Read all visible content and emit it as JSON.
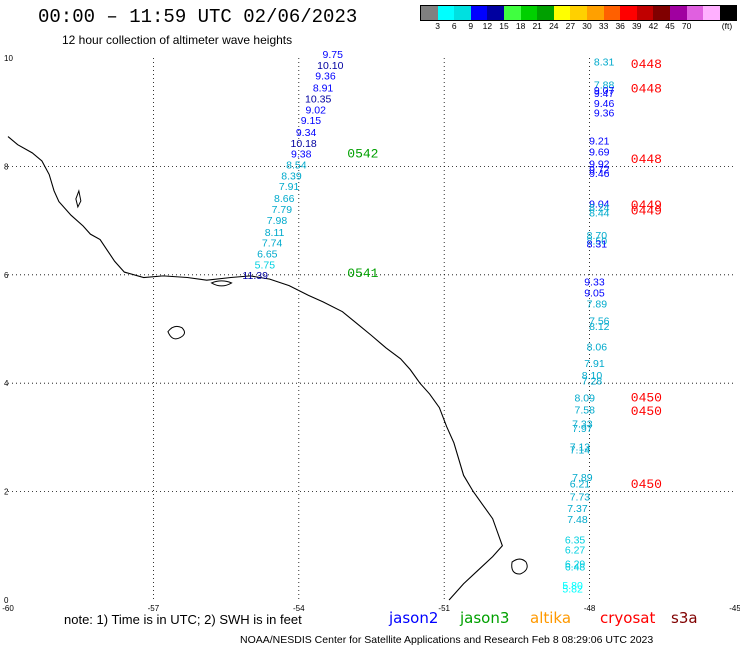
{
  "header": {
    "title": "00:00 – 11:59 UTC 02/06/2023",
    "subtitle": "12 hour collection of altimeter wave heights"
  },
  "legend": {
    "colors": [
      "#808080",
      "#00ffff",
      "#00e0e0",
      "#0000ff",
      "#0000a0",
      "#40ff40",
      "#00d000",
      "#00a000",
      "#ffff00",
      "#ffd000",
      "#ffa000",
      "#ff6000",
      "#ff0000",
      "#c00000",
      "#800000",
      "#a000a0",
      "#e060e0",
      "#ffb0ff",
      "#000000"
    ],
    "labels": [
      "3",
      "6",
      "9",
      "12",
      "15",
      "18",
      "21",
      "24",
      "27",
      "30",
      "33",
      "36",
      "39",
      "42",
      "45",
      "70",
      "(ft)"
    ]
  },
  "axes": {
    "x_ticks": [
      "-60",
      "-57",
      "-54",
      "-51",
      "-48",
      "-45"
    ],
    "y_ticks": [
      "0",
      "2",
      "4",
      "6",
      "8",
      "10"
    ]
  },
  "tracks": [
    {
      "satellite": "jason3",
      "time_labels": [
        {
          "text": "0542",
          "lat": 8.2
        },
        {
          "text": "0541",
          "lat": 6.0
        }
      ]
    },
    {
      "satellite": "cryosat",
      "time_labels": [
        {
          "text": "0448",
          "lat": 9.85
        },
        {
          "text": "0448",
          "lat": 9.4
        },
        {
          "text": "0448",
          "lat": 8.1
        },
        {
          "text": "0449",
          "lat": 7.25
        },
        {
          "text": "0449",
          "lat": 7.15
        },
        {
          "text": "0450",
          "lat": 3.7
        },
        {
          "text": "0450",
          "lat": 3.45
        },
        {
          "text": "0450",
          "lat": 2.1
        }
      ]
    }
  ],
  "track_jason3": [
    {
      "v": "9.75",
      "lat": 10.0,
      "lon": -53.3,
      "c": "#0000ff"
    },
    {
      "v": "10.10",
      "lat": 9.8,
      "lon": -53.35,
      "c": "#0000a0"
    },
    {
      "v": "9.36",
      "lat": 9.6,
      "lon": -53.45,
      "c": "#0000ff"
    },
    {
      "v": "8.91",
      "lat": 9.38,
      "lon": -53.5,
      "c": "#0000ff"
    },
    {
      "v": "10.35",
      "lat": 9.18,
      "lon": -53.6,
      "c": "#0000a0"
    },
    {
      "v": "9.02",
      "lat": 8.98,
      "lon": -53.65,
      "c": "#0000ff"
    },
    {
      "v": "9.15",
      "lat": 8.78,
      "lon": -53.75,
      "c": "#0000ff"
    },
    {
      "v": "9.34",
      "lat": 8.56,
      "lon": -53.85,
      "c": "#0000ff"
    },
    {
      "v": "10.18",
      "lat": 8.36,
      "lon": -53.9,
      "c": "#0000a0"
    },
    {
      "v": "9.38",
      "lat": 8.16,
      "lon": -53.95,
      "c": "#0000ff"
    },
    {
      "v": "8.54",
      "lat": 7.96,
      "lon": -54.05,
      "c": "#00aacc"
    },
    {
      "v": "8.39",
      "lat": 7.76,
      "lon": -54.15,
      "c": "#00aacc"
    },
    {
      "v": "7.91",
      "lat": 7.56,
      "lon": -54.2,
      "c": "#00aacc"
    },
    {
      "v": "8.66",
      "lat": 7.34,
      "lon": -54.3,
      "c": "#00aacc"
    },
    {
      "v": "7.79",
      "lat": 7.14,
      "lon": -54.35,
      "c": "#00aacc"
    },
    {
      "v": "7.98",
      "lat": 6.94,
      "lon": -54.45,
      "c": "#00aacc"
    },
    {
      "v": "8.11",
      "lat": 6.72,
      "lon": -54.5,
      "c": "#00aacc"
    },
    {
      "v": "7.74",
      "lat": 6.52,
      "lon": -54.55,
      "c": "#00aacc"
    },
    {
      "v": "6.65",
      "lat": 6.32,
      "lon": -54.65,
      "c": "#00aacc"
    },
    {
      "v": "5.75",
      "lat": 6.12,
      "lon": -54.7,
      "c": "#00d0e0"
    },
    {
      "v": "11.39",
      "lat": 5.92,
      "lon": -54.9,
      "c": "#0000a0"
    }
  ],
  "track_cryosat": [
    {
      "v": "8.31",
      "lat": 9.86,
      "lon": -47.7,
      "c": "#00aacc"
    },
    {
      "v": "7.88",
      "lat": 9.44,
      "lon": -47.7,
      "c": "#00aacc"
    },
    {
      "v": "9.07",
      "lat": 9.34,
      "lon": -47.7,
      "c": "#0000ff"
    },
    {
      "v": "9.47",
      "lat": 9.28,
      "lon": -47.7,
      "c": "#0000ff"
    },
    {
      "v": "9.46",
      "lat": 9.1,
      "lon": -47.7,
      "c": "#0000ff"
    },
    {
      "v": "9.36",
      "lat": 8.92,
      "lon": -47.7,
      "c": "#0000ff"
    },
    {
      "v": "9.21",
      "lat": 8.4,
      "lon": -47.8,
      "c": "#0000ff"
    },
    {
      "v": "9.69",
      "lat": 8.2,
      "lon": -47.8,
      "c": "#0000ff"
    },
    {
      "v": "9.92",
      "lat": 7.98,
      "lon": -47.8,
      "c": "#0000ff"
    },
    {
      "v": "9.72",
      "lat": 7.88,
      "lon": -47.8,
      "c": "#0000ff"
    },
    {
      "v": "9.46",
      "lat": 7.8,
      "lon": -47.8,
      "c": "#0000ff"
    },
    {
      "v": "9.04",
      "lat": 7.24,
      "lon": -47.8,
      "c": "#0000ff"
    },
    {
      "v": "8.24",
      "lat": 7.18,
      "lon": -47.8,
      "c": "#00aacc"
    },
    {
      "v": "8.44",
      "lat": 7.08,
      "lon": -47.8,
      "c": "#00aacc"
    },
    {
      "v": "8.70",
      "lat": 6.66,
      "lon": -47.85,
      "c": "#00aacc"
    },
    {
      "v": "8.50",
      "lat": 6.56,
      "lon": -47.85,
      "c": "#00aacc"
    },
    {
      "v": "8.31",
      "lat": 6.5,
      "lon": -47.85,
      "c": "#0000ff"
    },
    {
      "v": "9.33",
      "lat": 5.8,
      "lon": -47.9,
      "c": "#0000ff"
    },
    {
      "v": "9.05",
      "lat": 5.6,
      "lon": -47.9,
      "c": "#0000ff"
    },
    {
      "v": "7.89",
      "lat": 5.4,
      "lon": -47.85,
      "c": "#00aacc"
    },
    {
      "v": "7.56",
      "lat": 5.08,
      "lon": -47.8,
      "c": "#00aacc"
    },
    {
      "v": "8.12",
      "lat": 4.98,
      "lon": -47.8,
      "c": "#00aacc"
    },
    {
      "v": "8.06",
      "lat": 4.6,
      "lon": -47.85,
      "c": "#00aacc"
    },
    {
      "v": "7.91",
      "lat": 4.3,
      "lon": -47.9,
      "c": "#00aacc"
    },
    {
      "v": "8.10",
      "lat": 4.08,
      "lon": -47.95,
      "c": "#00aacc"
    },
    {
      "v": "7.28",
      "lat": 3.98,
      "lon": -47.95,
      "c": "#00aacc"
    },
    {
      "v": "8.09",
      "lat": 3.66,
      "lon": -48.1,
      "c": "#00aacc"
    },
    {
      "v": "7.58",
      "lat": 3.44,
      "lon": -48.1,
      "c": "#00aacc"
    },
    {
      "v": "7.33",
      "lat": 3.18,
      "lon": -48.15,
      "c": "#00aacc"
    },
    {
      "v": "7.97",
      "lat": 3.1,
      "lon": -48.15,
      "c": "#00aacc"
    },
    {
      "v": "7.13",
      "lat": 2.76,
      "lon": -48.2,
      "c": "#00aacc"
    },
    {
      "v": "7.14",
      "lat": 2.7,
      "lon": -48.2,
      "c": "#00aacc"
    },
    {
      "v": "7.89",
      "lat": 2.2,
      "lon": -48.15,
      "c": "#00aacc"
    },
    {
      "v": "6.21",
      "lat": 2.08,
      "lon": -48.2,
      "c": "#00aacc"
    },
    {
      "v": "7.73",
      "lat": 1.84,
      "lon": -48.2,
      "c": "#00aacc"
    },
    {
      "v": "7.37",
      "lat": 1.62,
      "lon": -48.25,
      "c": "#00aacc"
    },
    {
      "v": "7.48",
      "lat": 1.42,
      "lon": -48.25,
      "c": "#00aacc"
    },
    {
      "v": "6.35",
      "lat": 1.04,
      "lon": -48.3,
      "c": "#00d0e0"
    },
    {
      "v": "6.27",
      "lat": 0.86,
      "lon": -48.3,
      "c": "#00d0e0"
    },
    {
      "v": "6.29",
      "lat": 0.6,
      "lon": -48.3,
      "c": "#00d0e0"
    },
    {
      "v": "6.48",
      "lat": 0.54,
      "lon": -48.3,
      "c": "#00d0e0"
    },
    {
      "v": "5.80",
      "lat": 0.2,
      "lon": -48.35,
      "c": "#00ffff"
    },
    {
      "v": "5.82",
      "lat": 0.14,
      "lon": -48.35,
      "c": "#00ffff"
    }
  ],
  "footer": {
    "note": "note: 1) Time is in UTC; 2) SWH is in feet",
    "satellites": [
      {
        "name": "jason2",
        "color": "#0000ff"
      },
      {
        "name": "jason3",
        "color": "#00a000"
      },
      {
        "name": "altika",
        "color": "#ff9900"
      },
      {
        "name": "cryosat",
        "color": "#ff0000"
      },
      {
        "name": "s3a",
        "color": "#800000"
      }
    ],
    "credit": "NOAA/NESDIS Center for Satellite Applications and Research   Feb  8 08:29:06 UTC 2023"
  }
}
